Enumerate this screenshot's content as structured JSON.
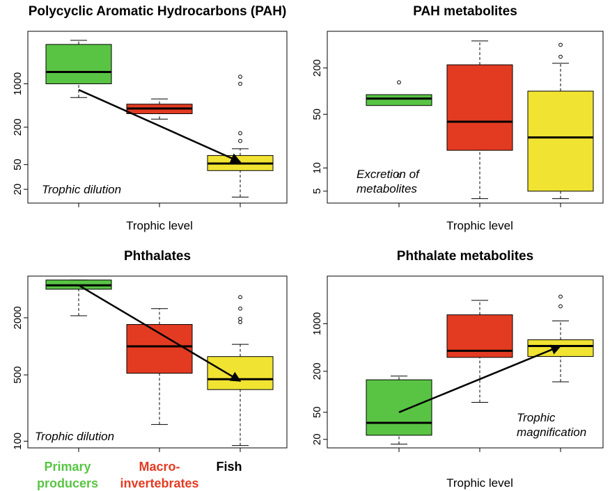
{
  "chart_data": [
    {
      "type": "box",
      "title": "Polycyclic Aromatic Hydrocarbons (PAH)",
      "xlabel": "Trophic level",
      "ylabel": "",
      "yscale": "log",
      "ylim": [
        12,
        7000
      ],
      "yticks": [
        20,
        50,
        200,
        1000
      ],
      "ytick_labels": [
        "20",
        "50",
        "200",
        "1000"
      ],
      "annotation": "Trophic dilution",
      "arrow": {
        "from": {
          "group": 0,
          "y": 800
        },
        "to": {
          "group": 2,
          "y": 55
        }
      },
      "boxes": [
        {
          "group": "Primary producers",
          "color": "#59c444",
          "whisker_low": 600,
          "q1": 1000,
          "median": 1550,
          "q3": 4300,
          "whisker_high": 5000,
          "outliers": []
        },
        {
          "group": "Macro-invertebrates",
          "color": "#e33b22",
          "whisker_low": 270,
          "q1": 330,
          "median": 400,
          "q3": 470,
          "whisker_high": 570,
          "outliers": []
        },
        {
          "group": "Fish",
          "color": "#f0e332",
          "whisker_low": 15,
          "q1": 40,
          "median": 52,
          "q3": 70,
          "whisker_high": 90,
          "outliers": [
            120,
            160,
            1000,
            1300
          ]
        }
      ]
    },
    {
      "type": "box",
      "title": "PAH metabolites",
      "xlabel": "Trophic level",
      "ylabel": "",
      "yscale": "log",
      "ylim": [
        3.5,
        600
      ],
      "yticks": [
        5,
        10,
        50,
        200
      ],
      "ytick_labels": [
        "5",
        "10",
        "50",
        "200"
      ],
      "annotation": "Excretion of metabolites",
      "annotation_lines": [
        "Excretion of",
        "metabolites"
      ],
      "boxes": [
        {
          "group": "Primary producers",
          "color": "#59c444",
          "whisker_low": null,
          "q1": 65,
          "median": 80,
          "q3": 90,
          "whisker_high": null,
          "outliers": [
            8,
            130
          ]
        },
        {
          "group": "Macro-invertebrates",
          "color": "#e33b22",
          "whisker_low": 4,
          "q1": 17,
          "median": 40,
          "q3": 220,
          "whisker_high": 450,
          "outliers": []
        },
        {
          "group": "Fish",
          "color": "#f0e332",
          "whisker_low": 4,
          "q1": 5,
          "median": 25,
          "q3": 100,
          "whisker_high": 230,
          "outliers": [
            280,
            400
          ]
        }
      ]
    },
    {
      "type": "box",
      "title": "Phthalates",
      "xlabel": "",
      "ylabel": "",
      "yscale": "log",
      "ylim": [
        85,
        5500
      ],
      "yticks": [
        100,
        500,
        2000
      ],
      "ytick_labels": [
        "100",
        "500",
        "2000"
      ],
      "annotation": "Trophic dilution",
      "arrow": {
        "from": {
          "group": 0,
          "y": 4400
        },
        "to": {
          "group": 2,
          "y": 430
        }
      },
      "boxes": [
        {
          "group": "Primary producers",
          "color": "#59c444",
          "whisker_low": 2100,
          "q1": 4000,
          "median": 4400,
          "q3": 5000,
          "whisker_high": 5000,
          "outliers": []
        },
        {
          "group": "Macro-invertebrates",
          "color": "#e33b22",
          "whisker_low": 150,
          "q1": 520,
          "median": 1000,
          "q3": 1700,
          "whisker_high": 2500,
          "outliers": []
        },
        {
          "group": "Fish",
          "color": "#f0e332",
          "whisker_low": 90,
          "q1": 350,
          "median": 450,
          "q3": 780,
          "whisker_high": 1050,
          "outliers": [
            1800,
            1950,
            2500,
            3300
          ]
        }
      ]
    },
    {
      "type": "box",
      "title": "Phthalate metabolites",
      "xlabel": "Trophic level",
      "ylabel": "",
      "yscale": "log",
      "ylim": [
        15,
        5000
      ],
      "yticks": [
        20,
        50,
        200,
        1000
      ],
      "ytick_labels": [
        "20",
        "50",
        "200",
        "1000"
      ],
      "annotation": "Trophic magnification",
      "annotation_lines": [
        "Trophic",
        "magnification"
      ],
      "arrow": {
        "from": {
          "group": 0,
          "y": 50
        },
        "to": {
          "group": 2,
          "y": 470
        }
      },
      "boxes": [
        {
          "group": "Primary producers",
          "color": "#59c444",
          "whisker_low": 17,
          "q1": 23,
          "median": 35,
          "q3": 150,
          "whisker_high": 170,
          "outliers": []
        },
        {
          "group": "Macro-invertebrates",
          "color": "#e33b22",
          "whisker_low": 70,
          "q1": 320,
          "median": 400,
          "q3": 1350,
          "whisker_high": 2200,
          "outliers": []
        },
        {
          "group": "Fish",
          "color": "#f0e332",
          "whisker_low": 140,
          "q1": 330,
          "median": 470,
          "q3": 580,
          "whisker_high": 1100,
          "outliers": [
            1800,
            2500
          ]
        }
      ]
    }
  ],
  "legend": {
    "items": [
      {
        "lines": [
          "Primary",
          "producers"
        ],
        "color": "#59c444"
      },
      {
        "lines": [
          "Macro-",
          "invertebrates"
        ],
        "color": "#e33b22"
      },
      {
        "lines": [
          "Fish"
        ],
        "color": "#000000"
      }
    ]
  }
}
